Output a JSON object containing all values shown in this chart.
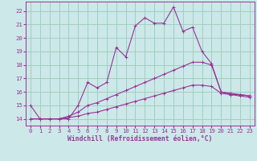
{
  "xlabel": "Windchill (Refroidissement éolien,°C)",
  "bg_color": "#cce8e8",
  "line_color": "#993399",
  "grid_color": "#99ccbb",
  "xlim": [
    -0.5,
    23.5
  ],
  "ylim": [
    13.5,
    22.7
  ],
  "yticks": [
    14,
    15,
    16,
    17,
    18,
    19,
    20,
    21,
    22
  ],
  "xticks": [
    0,
    1,
    2,
    3,
    4,
    5,
    6,
    7,
    8,
    9,
    10,
    11,
    12,
    13,
    14,
    15,
    16,
    17,
    18,
    19,
    20,
    21,
    22,
    23
  ],
  "line1_x": [
    0,
    1,
    2,
    3,
    4,
    5,
    6,
    7,
    8,
    9,
    10,
    11,
    12,
    13,
    14,
    15,
    16,
    17,
    18,
    19,
    20,
    21,
    22,
    23
  ],
  "line1_y": [
    15.0,
    14.0,
    14.0,
    14.0,
    14.0,
    15.0,
    16.7,
    16.3,
    16.7,
    19.3,
    18.6,
    20.9,
    21.5,
    21.1,
    21.1,
    22.3,
    20.5,
    20.8,
    19.0,
    18.1,
    16.0,
    15.8,
    15.8,
    15.7
  ],
  "line2_x": [
    0,
    1,
    2,
    3,
    4,
    5,
    6,
    7,
    8,
    9,
    10,
    11,
    12,
    13,
    14,
    15,
    16,
    17,
    18,
    19,
    20,
    21,
    22,
    23
  ],
  "line2_y": [
    14.0,
    14.0,
    14.0,
    14.0,
    14.2,
    14.5,
    15.0,
    15.2,
    15.5,
    15.8,
    16.1,
    16.4,
    16.7,
    17.0,
    17.3,
    17.6,
    17.9,
    18.2,
    18.2,
    18.0,
    16.0,
    15.9,
    15.8,
    15.7
  ],
  "line3_x": [
    0,
    1,
    2,
    3,
    4,
    5,
    6,
    7,
    8,
    9,
    10,
    11,
    12,
    13,
    14,
    15,
    16,
    17,
    18,
    19,
    20,
    21,
    22,
    23
  ],
  "line3_y": [
    14.0,
    14.0,
    14.0,
    14.0,
    14.1,
    14.2,
    14.4,
    14.5,
    14.7,
    14.9,
    15.1,
    15.3,
    15.5,
    15.7,
    15.9,
    16.1,
    16.3,
    16.5,
    16.5,
    16.4,
    15.9,
    15.8,
    15.7,
    15.6
  ],
  "tick_fontsize": 5.2,
  "xlabel_fontsize": 5.8
}
